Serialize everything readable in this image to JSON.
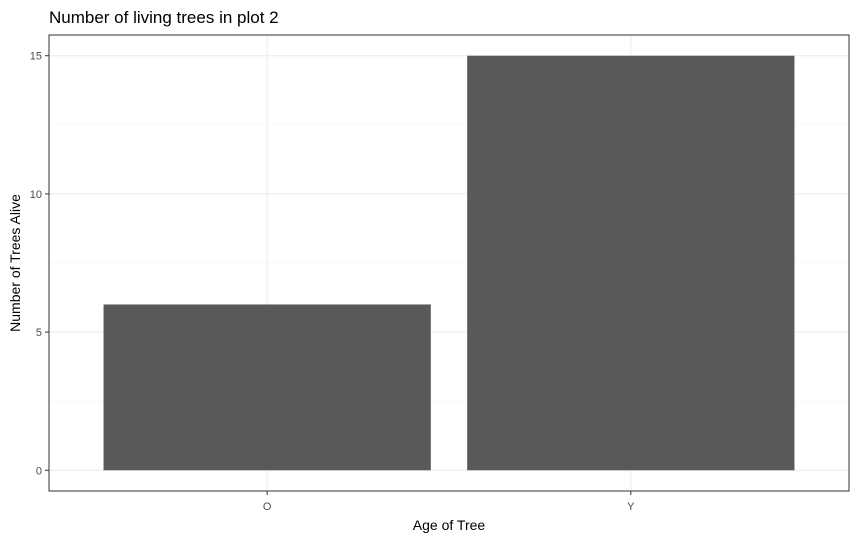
{
  "chart_data": {
    "type": "bar",
    "title": "Number of living trees in plot 2",
    "xlabel": "Age of Tree",
    "ylabel": "Number of Trees Alive",
    "categories": [
      "O",
      "Y"
    ],
    "values": [
      6,
      15
    ],
    "ylim": [
      -0.75,
      15.75
    ],
    "yticks": [
      0,
      5,
      10,
      15
    ],
    "ytick_labels": [
      "0",
      "5",
      "10",
      "15"
    ],
    "grid": true,
    "bar_color": "#595959"
  }
}
